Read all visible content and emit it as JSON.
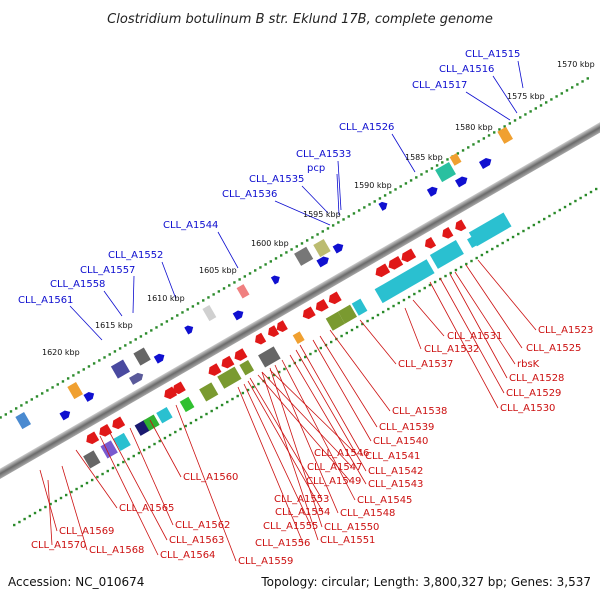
{
  "title": "Clostridium botulinum B str. Eklund 17B, complete genome",
  "footer": {
    "accession": "Accession: NC_010674",
    "summary": "Topology: circular; Length: 3,800,327 bp; Genes: 3,537"
  },
  "ticks": [
    "1570 kbp",
    "1575 kbp",
    "1580 kbp",
    "1585 kbp",
    "1590 kbp",
    "1595 kbp",
    "1600 kbp",
    "1605 kbp",
    "1610 kbp",
    "1615 kbp",
    "1620 kbp"
  ],
  "top_labels": [
    "CLL_A1515",
    "CLL_A1516",
    "CLL_A1517",
    "CLL_A1526",
    "CLL_A1533",
    "pcp",
    "CLL_A1535",
    "CLL_A1536",
    "CLL_A1544",
    "CLL_A1552",
    "CLL_A1557",
    "CLL_A1558",
    "CLL_A1561"
  ],
  "bottom_labels": [
    "CLL_A1523",
    "CLL_A1525",
    "CLL_A1531",
    "CLL_A1532",
    "rbsK",
    "CLL_A1528",
    "CLL_A1529",
    "CLL_A1530",
    "CLL_A1537",
    "CLL_A1538",
    "CLL_A1539",
    "CLL_A1540",
    "CLL_A1541",
    "CLL_A1546",
    "CLL_A1542",
    "CLL_A1547",
    "CLL_A1543",
    "CLL_A1549",
    "CLL_A1545",
    "CLL_A1548",
    "CLL_A1553",
    "CLL_A1554",
    "CLL_A1550",
    "CLL_A1555",
    "CLL_A1551",
    "CLL_A1556",
    "CLL_A1559",
    "CLL_A1560",
    "CLL_A1562",
    "CLL_A1563",
    "CLL_A1564",
    "CLL_A1565",
    "CLL_A1568",
    "CLL_A1569",
    "CLL_A1570"
  ],
  "colors": {
    "forward_label": "#0d0dcf",
    "reverse_label": "#cc1111",
    "backbone": "#888888",
    "tick_dots": "#2a8a2a"
  }
}
